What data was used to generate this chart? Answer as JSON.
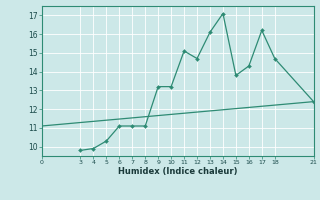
{
  "title": "",
  "xlabel": "Humidex (Indice chaleur)",
  "bg_color": "#cce8e8",
  "grid_color": "#ffffff",
  "line_color": "#2e8b74",
  "xlim": [
    0,
    21
  ],
  "ylim": [
    9.5,
    17.5
  ],
  "xticks": [
    0,
    3,
    4,
    5,
    6,
    7,
    8,
    9,
    10,
    11,
    12,
    13,
    14,
    15,
    16,
    17,
    18,
    21
  ],
  "yticks": [
    10,
    11,
    12,
    13,
    14,
    15,
    16,
    17
  ],
  "data_x": [
    3,
    4,
    5,
    6,
    7,
    8,
    9,
    10,
    11,
    12,
    13,
    14,
    15,
    16,
    17,
    18,
    21
  ],
  "data_y": [
    9.8,
    9.9,
    10.3,
    11.1,
    11.1,
    11.1,
    13.2,
    13.2,
    15.1,
    14.7,
    16.1,
    17.1,
    13.8,
    14.3,
    16.2,
    14.7,
    12.4
  ],
  "trend_x": [
    0,
    21
  ],
  "trend_y": [
    11.1,
    12.4
  ]
}
